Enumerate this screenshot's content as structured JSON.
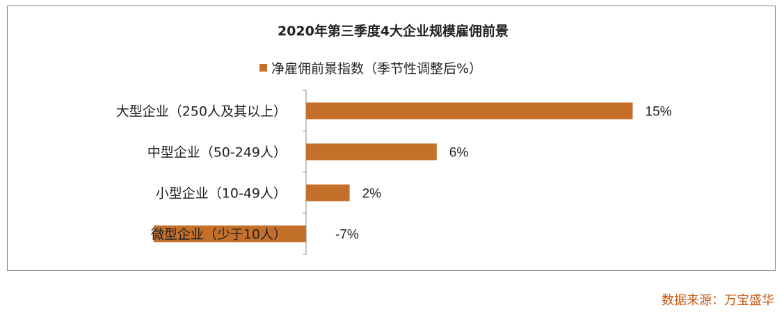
{
  "chart_data": {
    "type": "bar",
    "orientation": "horizontal",
    "title": "2020年第三季度4大企业规模雇佣前景",
    "categories": [
      "大型企业（250人及其以上）",
      "中型企业（50-249人）",
      "小型企业（10-49人）",
      "微型企业（少于10人）"
    ],
    "series": [
      {
        "name": "净雇佣前景指数（季节性调整后%）",
        "values": [
          15,
          6,
          2,
          -7
        ],
        "value_labels": [
          "15%",
          "6%",
          "2%",
          "-7%"
        ],
        "color": "#c5702a"
      }
    ],
    "xlim": [
      -7,
      15
    ],
    "legend_position": "top",
    "grid": false
  },
  "source": "数据来源：万宝盛华"
}
